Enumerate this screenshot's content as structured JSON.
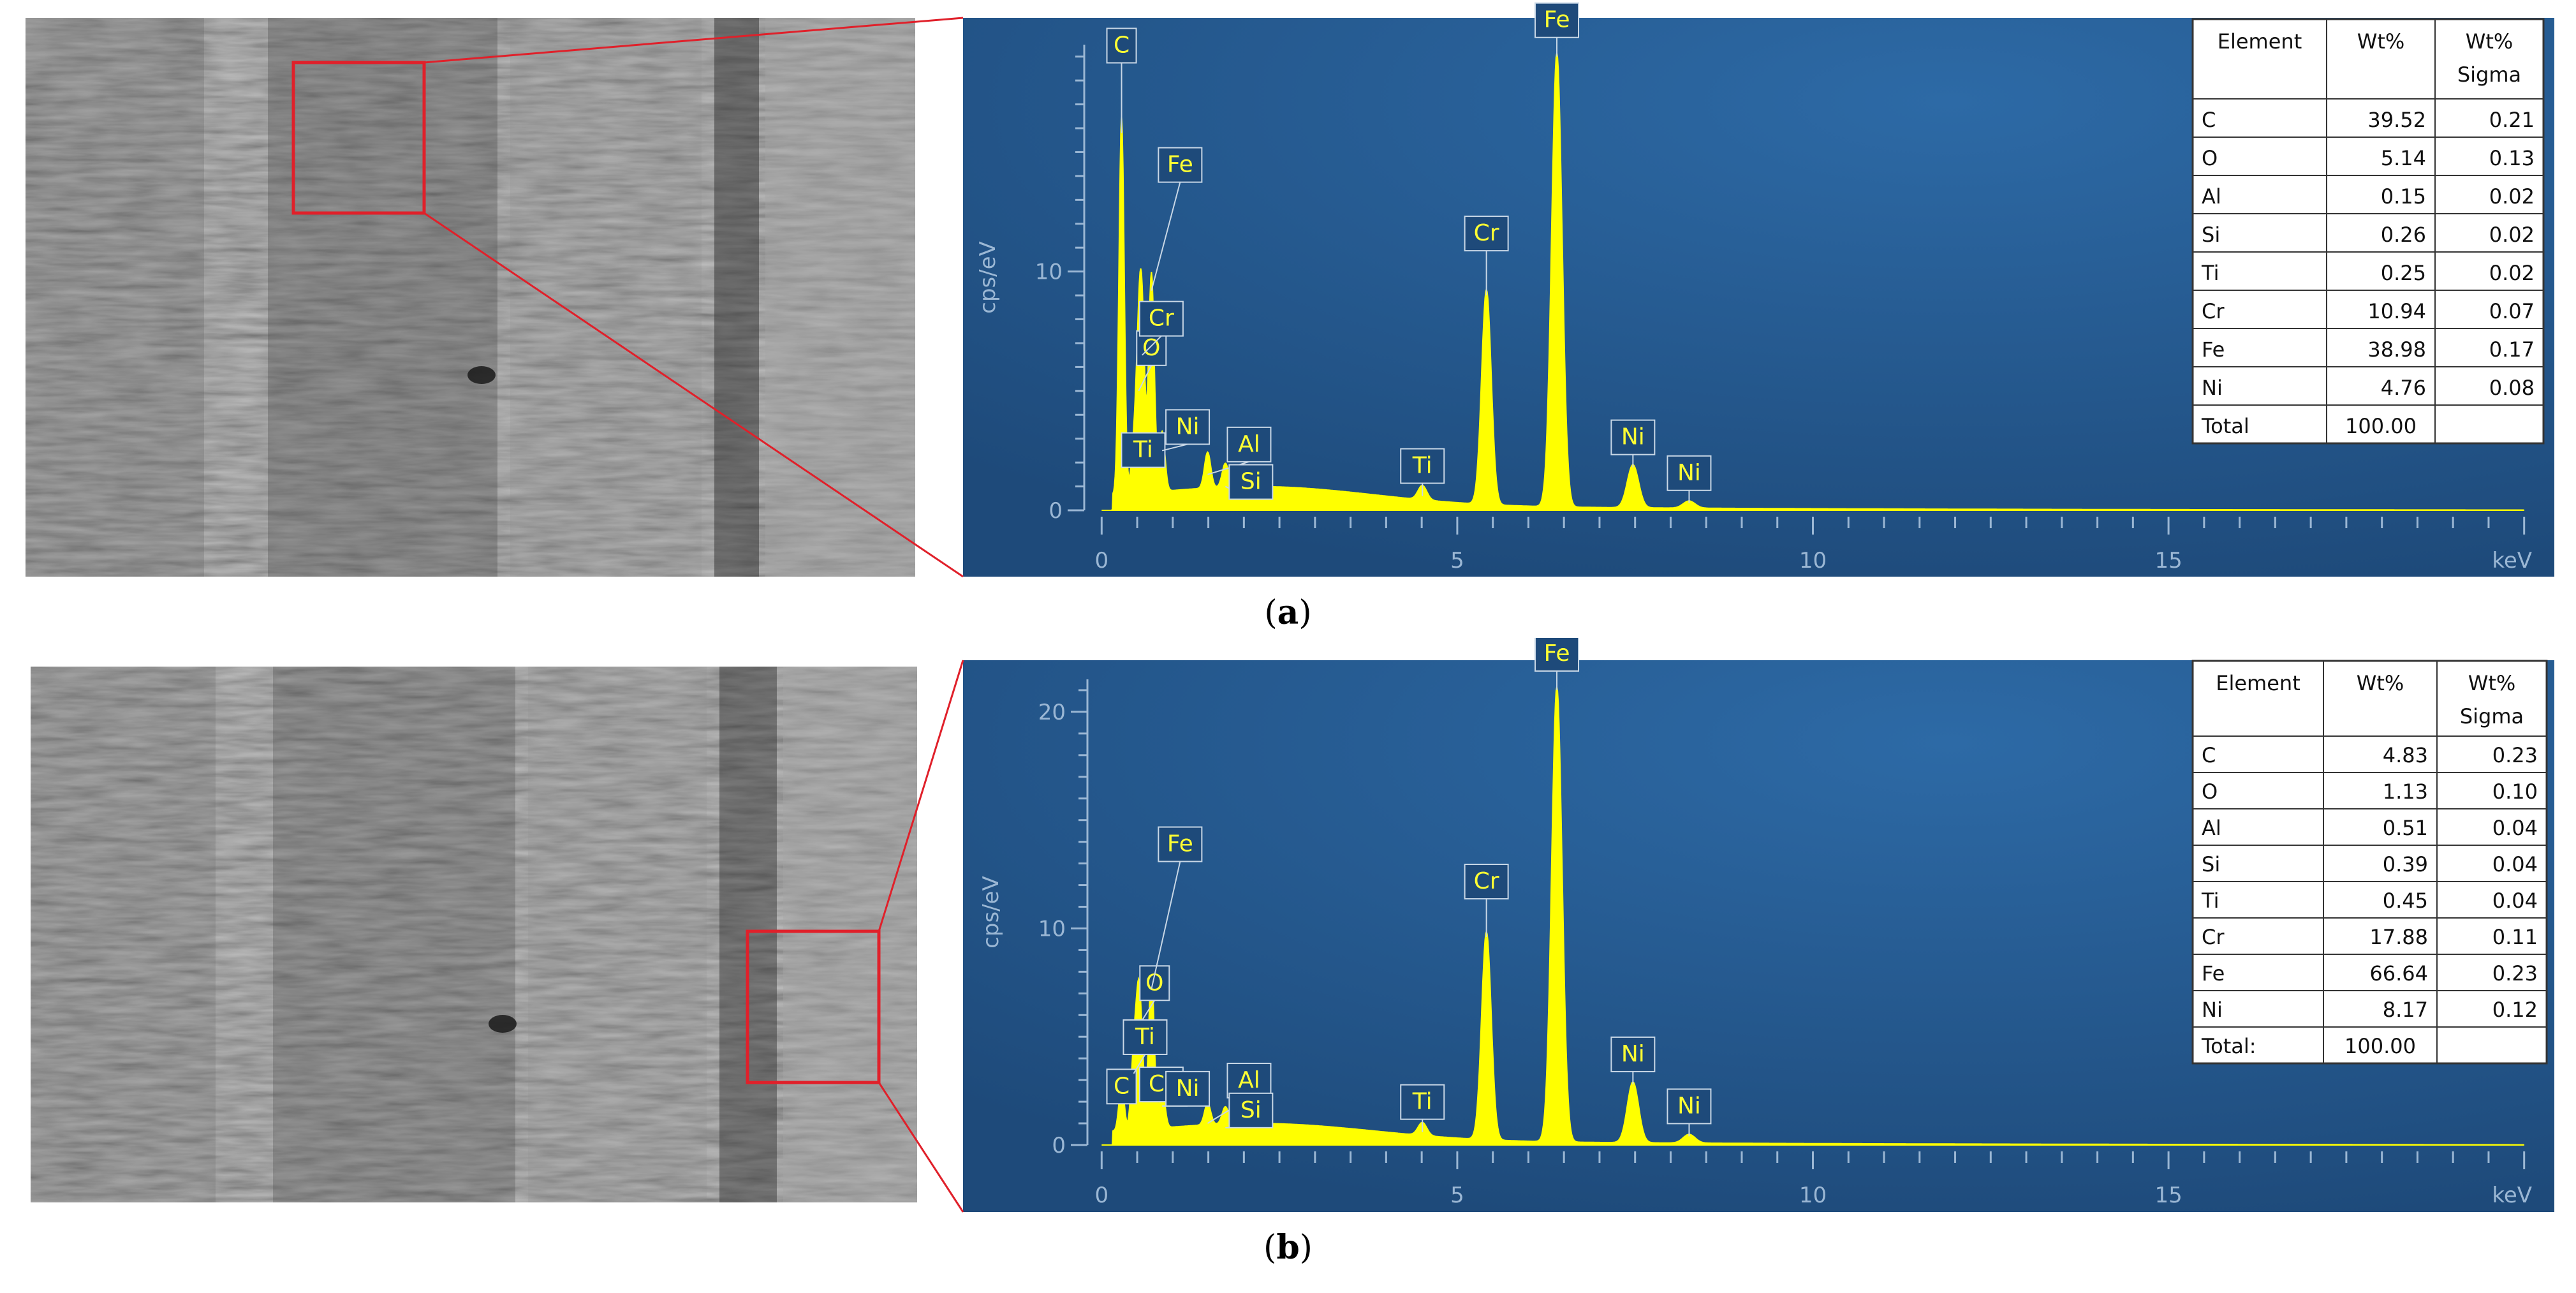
{
  "chart_data": [
    {
      "type": "line",
      "panel_caption_letter": "a",
      "ylabel": "cps/eV",
      "xlabel": "keV",
      "x_unit": "keV",
      "xlim": [
        -0.2,
        20.2
      ],
      "ylim": [
        0,
        19.5
      ],
      "x_ticks": [
        0,
        5,
        10,
        15
      ],
      "y_ticks": [
        0,
        10
      ],
      "background_color": "#1e4a7a",
      "spectrum_color": "#ffff00",
      "peaks": [
        {
          "label": "C",
          "x": 0.28,
          "y": 15.8
        },
        {
          "label": "O",
          "x": 0.52,
          "y": 5.0
        },
        {
          "label": "Ti",
          "x": 0.45,
          "y": 1.8
        },
        {
          "label": "Cr",
          "x": 0.57,
          "y": 6.5
        },
        {
          "label": "Fe",
          "x": 0.7,
          "y": 9.2
        },
        {
          "label": "Ni",
          "x": 0.85,
          "y": 2.5
        },
        {
          "label": "Al",
          "x": 1.49,
          "y": 1.5
        },
        {
          "label": "Si",
          "x": 1.74,
          "y": 1.0
        },
        {
          "label": "Ti",
          "x": 4.51,
          "y": 0.6
        },
        {
          "label": "Cr",
          "x": 5.41,
          "y": 9.0
        },
        {
          "label": "Fe",
          "x": 6.4,
          "y": 19.0
        },
        {
          "label": "Ni",
          "x": 7.47,
          "y": 1.8
        },
        {
          "label": "Ni",
          "x": 8.26,
          "y": 0.3
        }
      ],
      "table": {
        "headers": [
          "Element",
          "Wt%",
          "Wt%\nSigma"
        ],
        "rows": [
          [
            "C",
            "39.52",
            "0.21"
          ],
          [
            "O",
            "5.14",
            "0.13"
          ],
          [
            "Al",
            "0.15",
            "0.02"
          ],
          [
            "Si",
            "0.26",
            "0.02"
          ],
          [
            "Ti",
            "0.25",
            "0.02"
          ],
          [
            "Cr",
            "10.94",
            "0.07"
          ],
          [
            "Fe",
            "38.98",
            "0.17"
          ],
          [
            "Ni",
            "4.76",
            "0.08"
          ],
          [
            "Total",
            "100.00",
            ""
          ]
        ]
      }
    },
    {
      "type": "line",
      "panel_caption_letter": "b",
      "ylabel": "cps/eV",
      "xlabel": "keV",
      "x_unit": "keV",
      "xlim": [
        -0.2,
        20.2
      ],
      "ylim": [
        0,
        21.5
      ],
      "x_ticks": [
        0,
        5,
        10,
        15
      ],
      "y_ticks": [
        0,
        10,
        20
      ],
      "background_color": "#1e4a7a",
      "spectrum_color": "#ffff00",
      "peaks": [
        {
          "label": "C",
          "x": 0.28,
          "y": 2.2
        },
        {
          "label": "O",
          "x": 0.52,
          "y": 5.5
        },
        {
          "label": "Ti",
          "x": 0.45,
          "y": 3.3
        },
        {
          "label": "Cr",
          "x": 0.57,
          "y": 2.0
        },
        {
          "label": "Fe",
          "x": 0.7,
          "y": 7.2
        },
        {
          "label": "Ni",
          "x": 0.85,
          "y": 1.8
        },
        {
          "label": "Al",
          "x": 1.49,
          "y": 1.0
        },
        {
          "label": "Si",
          "x": 1.74,
          "y": 0.8
        },
        {
          "label": "Ti",
          "x": 4.51,
          "y": 0.6
        },
        {
          "label": "Cr",
          "x": 5.41,
          "y": 9.6
        },
        {
          "label": "Fe",
          "x": 6.4,
          "y": 21.0
        },
        {
          "label": "Ni",
          "x": 7.47,
          "y": 2.8
        },
        {
          "label": "Ni",
          "x": 8.26,
          "y": 0.4
        }
      ],
      "table": {
        "headers": [
          "Element",
          "Wt%",
          "Wt%\nSigma"
        ],
        "rows": [
          [
            "C",
            "4.83",
            "0.23"
          ],
          [
            "O",
            "1.13",
            "0.10"
          ],
          [
            "Al",
            "0.51",
            "0.04"
          ],
          [
            "Si",
            "0.39",
            "0.04"
          ],
          [
            "Ti",
            "0.45",
            "0.04"
          ],
          [
            "Cr",
            "17.88",
            "0.11"
          ],
          [
            "Fe",
            "66.64",
            "0.23"
          ],
          [
            "Ni",
            "8.17",
            "0.12"
          ],
          [
            "Total:",
            "100.00",
            ""
          ]
        ]
      }
    }
  ]
}
